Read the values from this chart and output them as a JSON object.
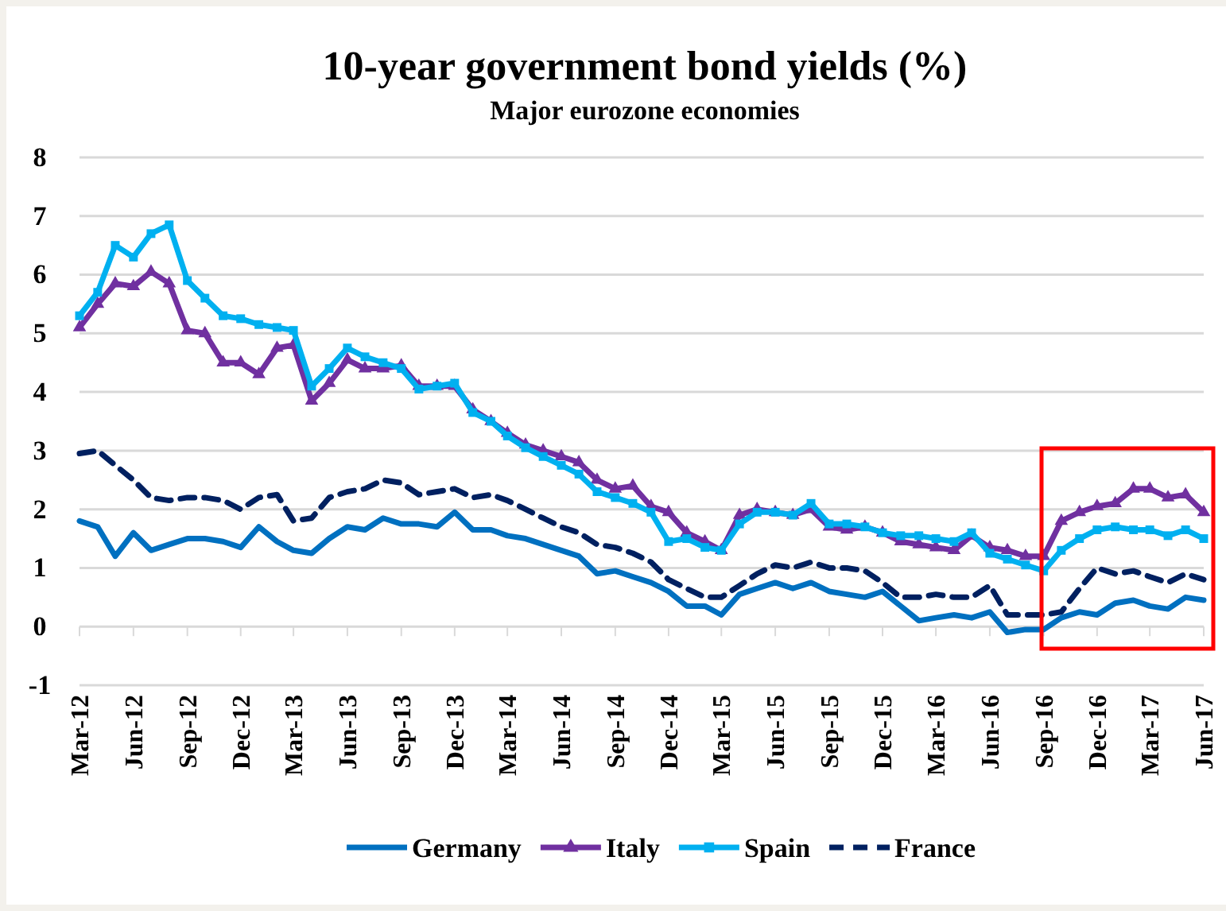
{
  "chart_data": {
    "type": "line",
    "title": "10-year government bond yields (%)",
    "subtitle": "Major eurozone economies",
    "x": [
      "2012-03",
      "2012-04",
      "2012-05",
      "2012-06",
      "2012-07",
      "2012-08",
      "2012-09",
      "2012-10",
      "2012-11",
      "2012-12",
      "2013-01",
      "2013-02",
      "2013-03",
      "2013-04",
      "2013-05",
      "2013-06",
      "2013-07",
      "2013-08",
      "2013-09",
      "2013-10",
      "2013-11",
      "2013-12",
      "2014-01",
      "2014-02",
      "2014-03",
      "2014-04",
      "2014-05",
      "2014-06",
      "2014-07",
      "2014-08",
      "2014-09",
      "2014-10",
      "2014-11",
      "2014-12",
      "2015-01",
      "2015-02",
      "2015-03",
      "2015-04",
      "2015-05",
      "2015-06",
      "2015-07",
      "2015-08",
      "2015-09",
      "2015-10",
      "2015-11",
      "2015-12",
      "2016-01",
      "2016-02",
      "2016-03",
      "2016-04",
      "2016-05",
      "2016-06",
      "2016-07",
      "2016-08",
      "2016-09",
      "2016-10",
      "2016-11",
      "2016-12",
      "2017-01",
      "2017-02",
      "2017-03",
      "2017-04",
      "2017-05",
      "2017-06"
    ],
    "series": [
      {
        "name": "Germany",
        "color": "#0070c0",
        "marker": "none",
        "line_style": "solid",
        "values": [
          1.8,
          1.7,
          1.2,
          1.6,
          1.3,
          1.4,
          1.5,
          1.5,
          1.45,
          1.35,
          1.7,
          1.45,
          1.3,
          1.25,
          1.5,
          1.7,
          1.65,
          1.85,
          1.75,
          1.75,
          1.7,
          1.95,
          1.65,
          1.65,
          1.55,
          1.5,
          1.4,
          1.3,
          1.2,
          0.9,
          0.95,
          0.85,
          0.75,
          0.6,
          0.35,
          0.35,
          0.2,
          0.55,
          0.65,
          0.75,
          0.65,
          0.75,
          0.6,
          0.55,
          0.5,
          0.6,
          0.35,
          0.1,
          0.15,
          0.2,
          0.15,
          0.25,
          -0.1,
          -0.05,
          -0.05,
          0.15,
          0.25,
          0.2,
          0.4,
          0.45,
          0.35,
          0.3,
          0.5,
          0.45
        ]
      },
      {
        "name": "Italy",
        "color": "#7030a0",
        "marker": "triangle",
        "line_style": "solid",
        "values": [
          5.1,
          5.5,
          5.85,
          5.8,
          6.05,
          5.85,
          5.05,
          5.0,
          4.5,
          4.5,
          4.3,
          4.75,
          4.8,
          3.85,
          4.15,
          4.55,
          4.4,
          4.4,
          4.45,
          4.1,
          4.1,
          4.1,
          3.7,
          3.5,
          3.3,
          3.1,
          3.0,
          2.9,
          2.8,
          2.5,
          2.35,
          2.4,
          2.05,
          1.95,
          1.6,
          1.45,
          1.3,
          1.9,
          2.0,
          1.95,
          1.9,
          2.0,
          1.7,
          1.65,
          1.7,
          1.6,
          1.45,
          1.4,
          1.35,
          1.3,
          1.55,
          1.35,
          1.3,
          1.2,
          1.2,
          1.8,
          1.95,
          2.05,
          2.1,
          2.35,
          2.35,
          2.2,
          2.25,
          1.95
        ]
      },
      {
        "name": "Spain",
        "color": "#00b0f0",
        "marker": "square",
        "line_style": "solid",
        "values": [
          5.3,
          5.7,
          6.5,
          6.3,
          6.7,
          6.85,
          5.9,
          5.6,
          5.3,
          5.25,
          5.15,
          5.1,
          5.05,
          4.1,
          4.4,
          4.75,
          4.6,
          4.5,
          4.4,
          4.05,
          4.1,
          4.15,
          3.65,
          3.5,
          3.25,
          3.05,
          2.9,
          2.75,
          2.6,
          2.3,
          2.2,
          2.1,
          1.95,
          1.45,
          1.5,
          1.35,
          1.3,
          1.75,
          1.95,
          1.95,
          1.9,
          2.1,
          1.75,
          1.75,
          1.7,
          1.6,
          1.55,
          1.55,
          1.5,
          1.45,
          1.6,
          1.25,
          1.15,
          1.05,
          0.95,
          1.3,
          1.5,
          1.65,
          1.7,
          1.65,
          1.65,
          1.55,
          1.65,
          1.5
        ]
      },
      {
        "name": "France",
        "color": "#002060",
        "marker": "none",
        "line_style": "dashed",
        "values": [
          2.95,
          3.0,
          2.75,
          2.5,
          2.2,
          2.15,
          2.2,
          2.2,
          2.15,
          2.0,
          2.2,
          2.25,
          1.8,
          1.85,
          2.2,
          2.3,
          2.35,
          2.5,
          2.45,
          2.25,
          2.3,
          2.35,
          2.2,
          2.25,
          2.15,
          2.0,
          1.85,
          1.7,
          1.6,
          1.4,
          1.35,
          1.25,
          1.1,
          0.8,
          0.65,
          0.5,
          0.5,
          0.7,
          0.9,
          1.05,
          1.0,
          1.1,
          1.0,
          1.0,
          0.95,
          0.75,
          0.5,
          0.5,
          0.55,
          0.5,
          0.5,
          0.7,
          0.2,
          0.2,
          0.2,
          0.25,
          0.65,
          1.0,
          0.9,
          0.95,
          0.85,
          0.75,
          0.9,
          0.8
        ]
      }
    ],
    "xlim": [
      "2012-03",
      "2017-06"
    ],
    "xticks": [
      {
        "value": "2012-03",
        "label": "Mar-12"
      },
      {
        "value": "2012-06",
        "label": "Jun-12"
      },
      {
        "value": "2012-09",
        "label": "Sep-12"
      },
      {
        "value": "2012-12",
        "label": "Dec-12"
      },
      {
        "value": "2013-03",
        "label": "Mar-13"
      },
      {
        "value": "2013-06",
        "label": "Jun-13"
      },
      {
        "value": "2013-09",
        "label": "Sep-13"
      },
      {
        "value": "2013-12",
        "label": "Dec-13"
      },
      {
        "value": "2014-03",
        "label": "Mar-14"
      },
      {
        "value": "2014-06",
        "label": "Jun-14"
      },
      {
        "value": "2014-09",
        "label": "Sep-14"
      },
      {
        "value": "2014-12",
        "label": "Dec-14"
      },
      {
        "value": "2015-03",
        "label": "Mar-15"
      },
      {
        "value": "2015-06",
        "label": "Jun-15"
      },
      {
        "value": "2015-09",
        "label": "Sep-15"
      },
      {
        "value": "2015-12",
        "label": "Dec-15"
      },
      {
        "value": "2016-03",
        "label": "Mar-16"
      },
      {
        "value": "2016-06",
        "label": "Jun-16"
      },
      {
        "value": "2016-09",
        "label": "Sep-16"
      },
      {
        "value": "2016-12",
        "label": "Dec-16"
      },
      {
        "value": "2017-03",
        "label": "Mar-17"
      },
      {
        "value": "2017-06",
        "label": "Jun-17"
      }
    ],
    "ylim": [
      -1,
      8
    ],
    "yticks": [
      -1,
      0,
      1,
      2,
      3,
      4,
      5,
      6,
      7,
      8
    ],
    "grid": "y",
    "legend": "bottom"
  }
}
